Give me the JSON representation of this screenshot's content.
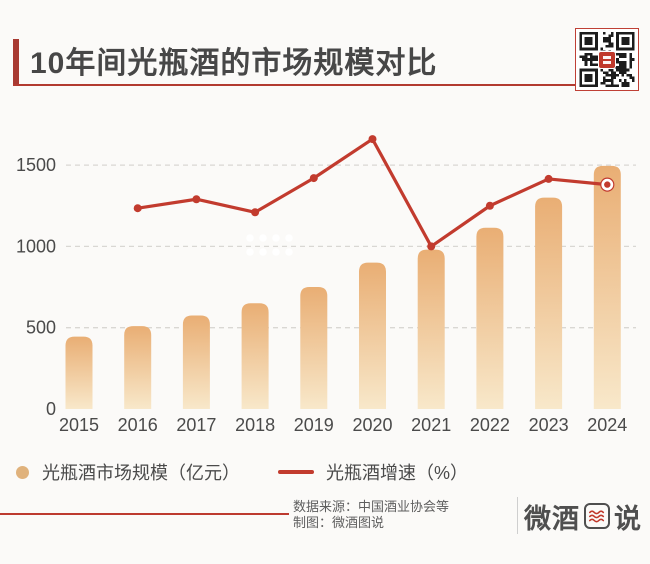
{
  "header": {
    "title": "10年间光瓶酒的市场规模对比",
    "qr_icon": "qr-code-icon"
  },
  "chart_data": {
    "type": "combo-bar-line",
    "categories": [
      "2015",
      "2016",
      "2017",
      "2018",
      "2019",
      "2020",
      "2021",
      "2022",
      "2023",
      "2024"
    ],
    "series": [
      {
        "name": "光瓶酒市场规模（亿元）",
        "type": "bar",
        "values": [
          445,
          510,
          575,
          650,
          750,
          900,
          980,
          1115,
          1300,
          1495
        ]
      },
      {
        "name": "光瓶酒增速（%）",
        "type": "line",
        "values": [
          null,
          1235,
          1290,
          1210,
          1420,
          1660,
          1000,
          1250,
          1415,
          1380
        ],
        "note": "growth-rate line drawn on a hidden secondary axis; values are left-axis-equivalent positions read from the plot"
      }
    ],
    "title": "10年间光瓶酒的市场规模对比",
    "xlabel": "",
    "ylabel": "",
    "ylim": [
      0,
      1700
    ],
    "yticks": [
      0,
      500,
      1000,
      1500
    ],
    "grid": "dashed horizontal gridlines at 500/1000/1500, no baseline axis",
    "legend_position": "bottom-left",
    "last_point_marker": "red dot with white ring"
  },
  "colors": {
    "background": "#fbfaf8",
    "accent_red": "#a83a32",
    "rule_red": "#b23a30",
    "line_red": "#c23b2e",
    "bar_top": "#e9ae74",
    "bar_bottom": "#f8e8ca",
    "legend_dot": "#e0b27c",
    "axis_text": "#4a4a4a",
    "grid": "#d9d7d3",
    "title_text": "#474747",
    "qr_dark": "#1c1c1c"
  },
  "footer": {
    "source": "数据来源：中国酒业协会等",
    "credit": "制图：微酒图说",
    "logo_prefix": "微酒",
    "logo_suffix": "说",
    "logo_wave_icon": "wave-lines-icon"
  }
}
